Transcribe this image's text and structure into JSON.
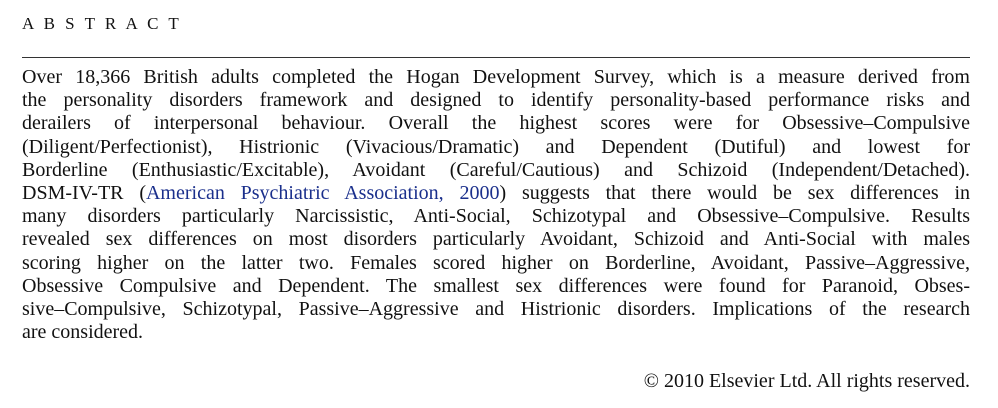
{
  "header": {
    "title": "A B S T R A C T"
  },
  "abstract": {
    "lines": [
      "Over 18,366 British adults completed the Hogan Development Survey, which is a measure derived from",
      "the personality disorders framework and designed to identify personality-based performance risks and",
      "derailers of interpersonal behaviour. Overall the highest scores were for Obsessive–Compulsive",
      "(Diligent/Perfectionist), Histrionic (Vivacious/Dramatic) and Dependent (Dutiful) and lowest for",
      "Borderline (Enthusiastic/Excitable), Avoidant (Careful/Cautious) and Schizoid (Independent/Detached).",
      {
        "text_before": "DSM-IV-TR (",
        "link": "American Psychiatric Association, 2000",
        "text_after": ") suggests that there would be sex differences in"
      },
      "many disorders particularly Narcissistic, Anti-Social, Schizotypal and Obsessive–Compulsive. Results",
      "revealed sex differences on most disorders particularly Avoidant, Schizoid and Anti-Social with males",
      "scoring higher on the latter two. Females scored higher on Borderline, Avoidant, Passive–Aggressive,",
      "Obsessive Compulsive and Dependent. The smallest sex differences were found for Paranoid, Obses-",
      "sive–Compulsive, Schizotypal, Passive–Aggressive and Histrionic disorders. Implications of the research",
      "are considered."
    ],
    "copyright": "© 2010 Elsevier Ltd. All rights reserved."
  }
}
